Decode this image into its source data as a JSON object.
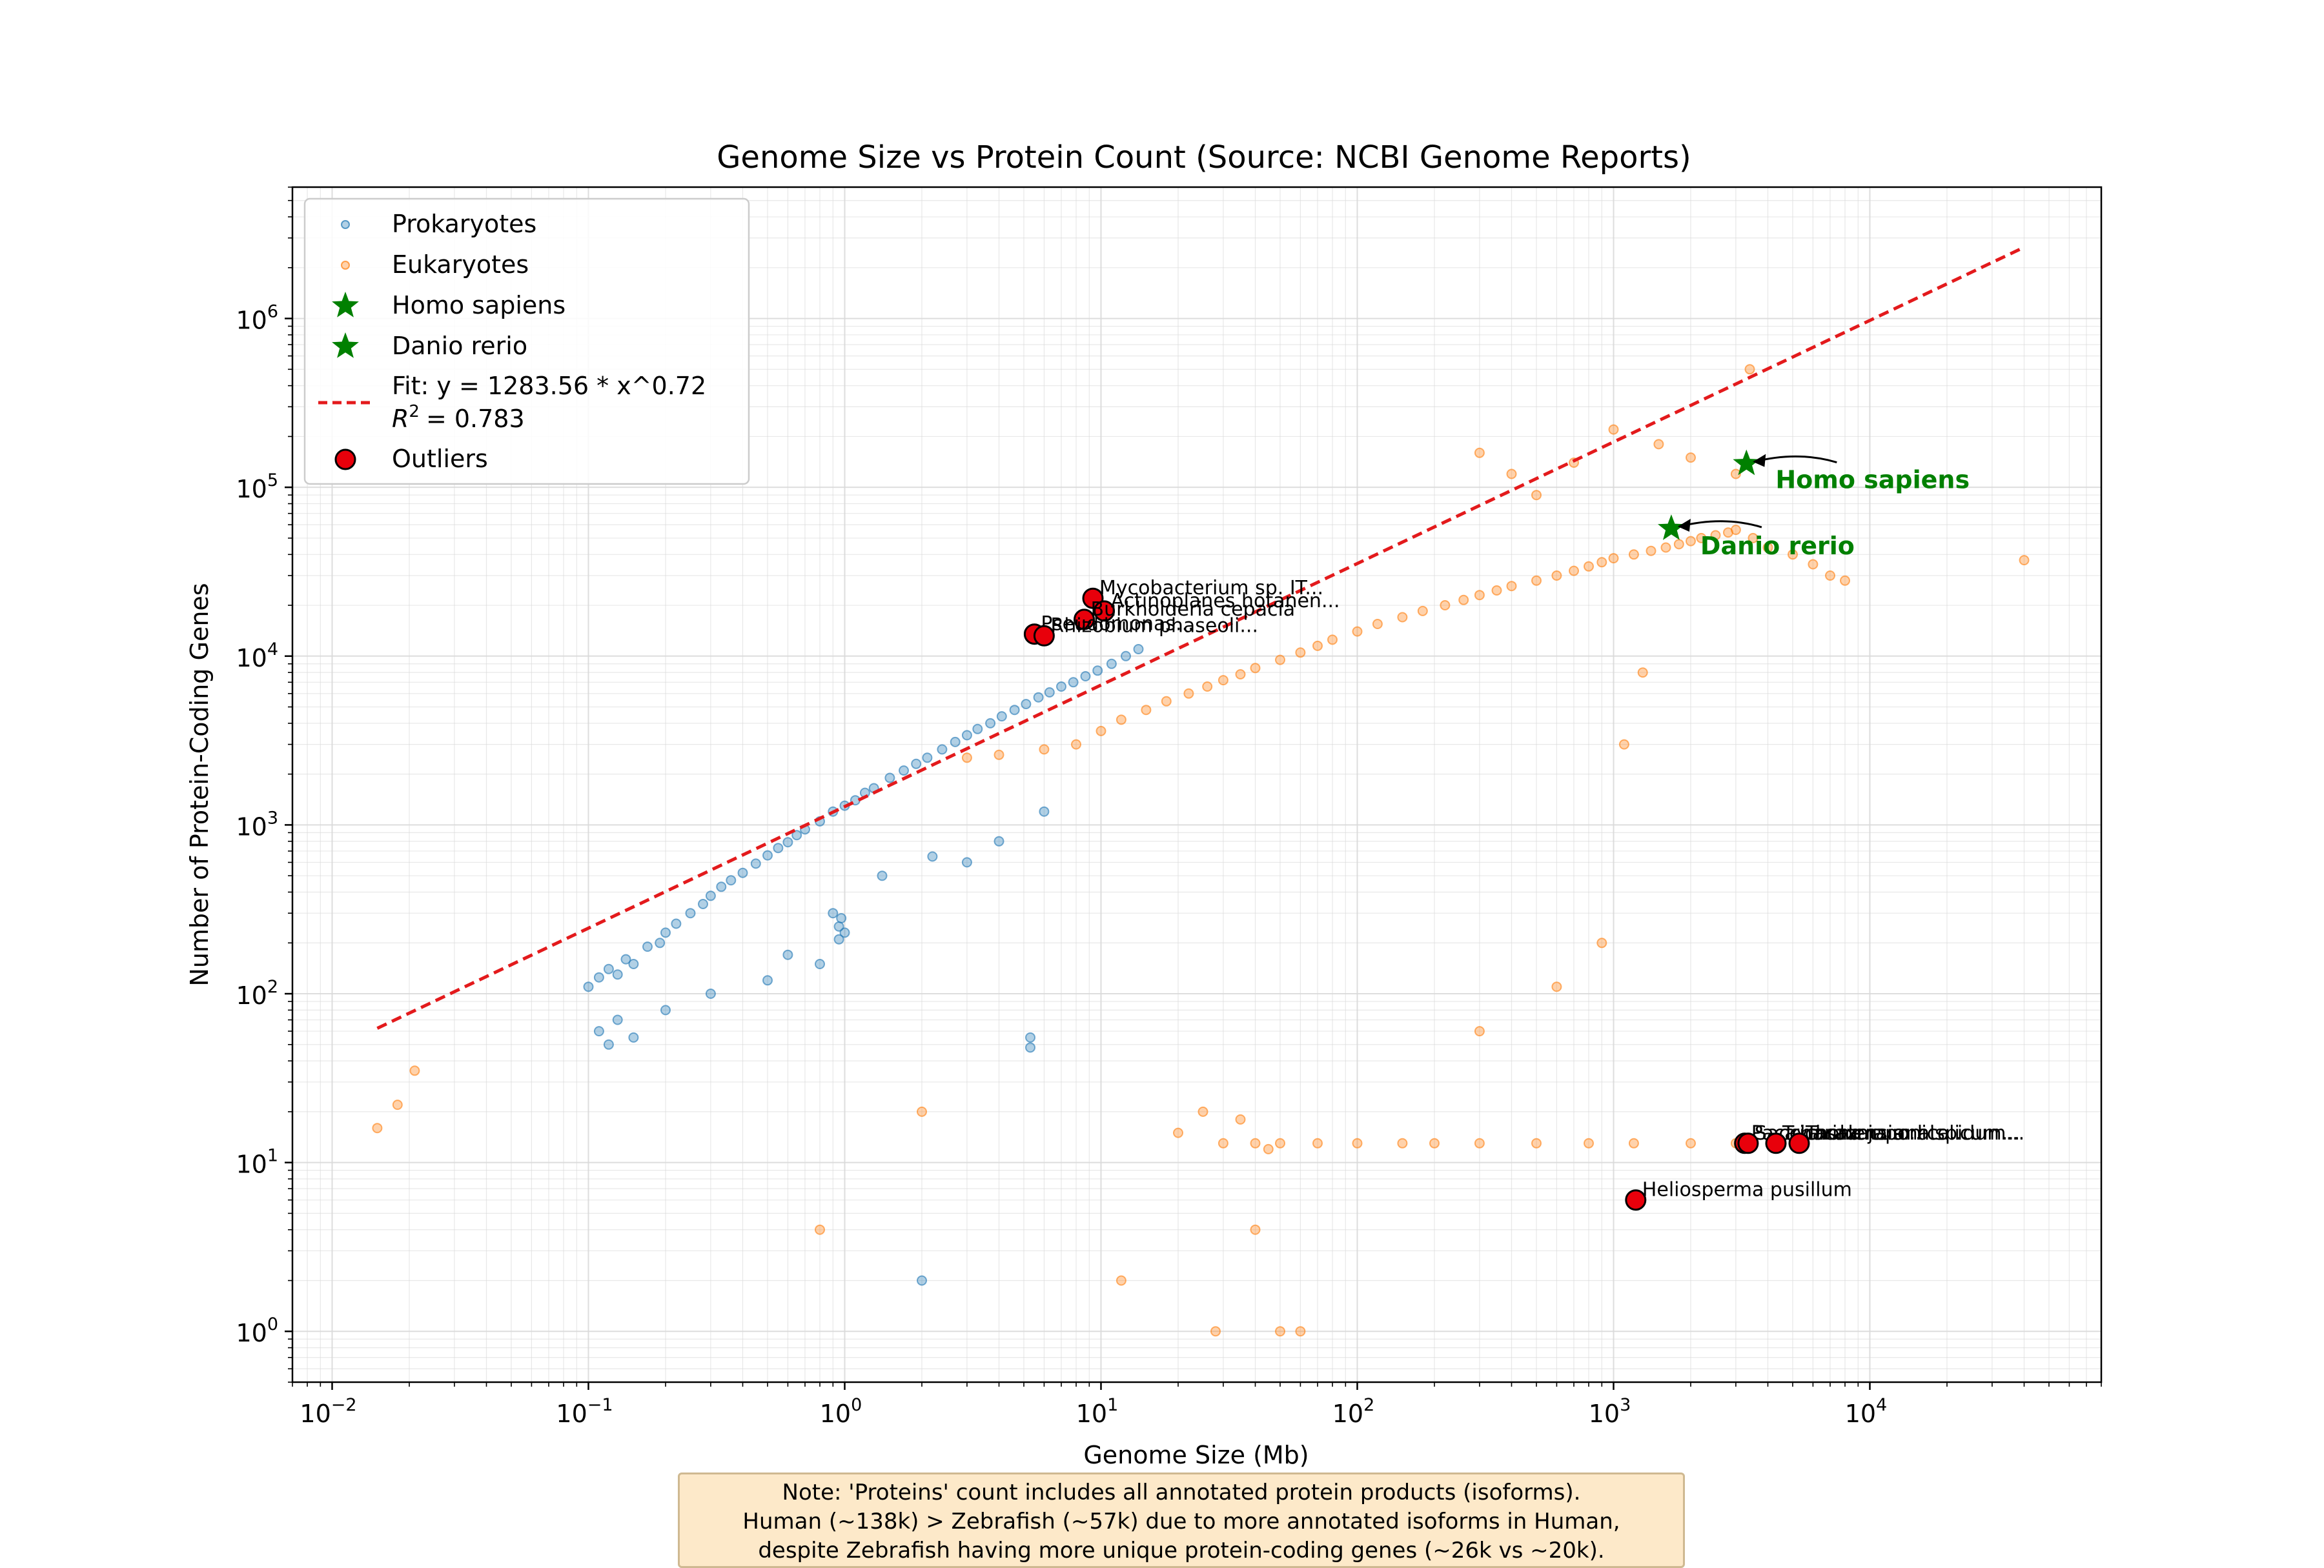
{
  "chart_data": {
    "type": "scatter",
    "title": "Genome Size vs Protein Count (Source: NCBI Genome Reports)",
    "xlabel": "Genome Size (Mb)",
    "ylabel": "Number of Protein-Coding Genes",
    "x_scale": "log",
    "y_scale": "log",
    "xlim": [
      0.007,
      80000
    ],
    "ylim": [
      0.5,
      6000000
    ],
    "x_ticks": [
      0.01,
      0.1,
      1,
      10,
      100,
      1000,
      10000
    ],
    "x_tick_labels": [
      [
        "10",
        "−2"
      ],
      [
        "10",
        "−1"
      ],
      [
        "10",
        "0"
      ],
      [
        "10",
        "1"
      ],
      [
        "10",
        "2"
      ],
      [
        "10",
        "3"
      ],
      [
        "10",
        "4"
      ]
    ],
    "y_ticks": [
      1,
      10,
      100,
      1000,
      10000,
      100000,
      1000000
    ],
    "y_tick_labels": [
      [
        "10",
        "0"
      ],
      [
        "10",
        "1"
      ],
      [
        "10",
        "2"
      ],
      [
        "10",
        "3"
      ],
      [
        "10",
        "4"
      ],
      [
        "10",
        "5"
      ],
      [
        "10",
        "6"
      ]
    ],
    "grid": true,
    "legend_position": "top-left",
    "colors": {
      "prokaryotes": "#1f77b4",
      "eukaryotes": "#ff7f0e",
      "highlight": "#008000",
      "fit": "#e31a1c",
      "outlier": "#e8000b"
    },
    "series": [
      {
        "name": "Prokaryotes",
        "kind": "points",
        "note": "dense cloud of ~thousands of genomes roughly 0.1–15 Mb, ~40–20000 genes",
        "x": [
          0.1,
          0.11,
          0.12,
          0.13,
          0.14,
          0.15,
          0.17,
          0.19,
          0.2,
          0.22,
          0.25,
          0.28,
          0.3,
          0.33,
          0.36,
          0.4,
          0.45,
          0.5,
          0.55,
          0.6,
          0.65,
          0.7,
          0.8,
          0.9,
          1.0,
          1.1,
          1.2,
          1.3,
          1.5,
          1.7,
          1.9,
          2.1,
          2.4,
          2.7,
          3.0,
          3.3,
          3.7,
          4.1,
          4.6,
          5.1,
          5.7,
          6.3,
          7.0,
          7.8,
          8.7,
          9.7,
          11,
          12.5,
          14,
          0.95,
          0.95,
          0.97,
          1.0,
          5.3,
          5.3,
          0.11,
          0.12,
          0.13,
          0.15,
          0.2,
          0.3,
          0.5,
          0.8,
          2.0,
          3.0,
          4.0,
          6.0,
          0.6,
          0.9,
          1.4,
          2.2
        ],
        "y": [
          110,
          125,
          140,
          130,
          160,
          150,
          190,
          200,
          230,
          260,
          300,
          340,
          380,
          430,
          470,
          520,
          590,
          660,
          730,
          790,
          870,
          940,
          1050,
          1200,
          1300,
          1400,
          1550,
          1650,
          1900,
          2100,
          2300,
          2500,
          2800,
          3100,
          3400,
          3700,
          4000,
          4400,
          4800,
          5200,
          5700,
          6100,
          6600,
          7000,
          7600,
          8200,
          9000,
          10000,
          11000,
          250,
          210,
          280,
          230,
          48,
          55,
          60,
          50,
          70,
          55,
          80,
          100,
          120,
          150,
          2,
          600,
          800,
          1200,
          170,
          300,
          500,
          650
        ]
      },
      {
        "name": "Eukaryotes",
        "kind": "points",
        "note": "broad cloud of genomes roughly 3–40000 Mb, mostly 1000–100000 genes, plus a flat band at ~13",
        "x": [
          0.015,
          0.018,
          0.021,
          3,
          4,
          6,
          8,
          10,
          12,
          15,
          18,
          22,
          26,
          30,
          35,
          40,
          50,
          60,
          70,
          80,
          100,
          120,
          150,
          180,
          220,
          260,
          300,
          350,
          400,
          500,
          600,
          700,
          800,
          900,
          1000,
          1200,
          1400,
          1600,
          1800,
          2000,
          2200,
          2500,
          2800,
          3000,
          3500,
          4000,
          5000,
          6000,
          7000,
          8000,
          40000,
          30,
          40,
          50,
          70,
          100,
          150,
          200,
          300,
          500,
          800,
          1200,
          2000,
          3000,
          300,
          400,
          500,
          700,
          1000,
          1500,
          2000,
          3000,
          3400,
          20,
          25,
          35,
          45,
          60,
          28,
          40,
          50,
          12,
          2.0,
          0.8,
          300,
          600,
          900,
          1100,
          1300
        ],
        "y": [
          16,
          22,
          35,
          2500,
          2600,
          2800,
          3000,
          3600,
          4200,
          4800,
          5400,
          6000,
          6600,
          7200,
          7800,
          8500,
          9500,
          10500,
          11500,
          12500,
          14000,
          15500,
          17000,
          18500,
          20000,
          21500,
          23000,
          24500,
          26000,
          28000,
          30000,
          32000,
          34000,
          36000,
          38000,
          40000,
          42000,
          44000,
          46000,
          48000,
          50000,
          52000,
          54000,
          56000,
          50000,
          44000,
          40000,
          35000,
          30000,
          28000,
          37000,
          13,
          13,
          13,
          13,
          13,
          13,
          13,
          13,
          13,
          13,
          13,
          13,
          13,
          160000,
          120000,
          90000,
          140000,
          220000,
          180000,
          150000,
          120000,
          500000,
          15,
          20,
          18,
          12,
          1,
          1,
          4,
          1,
          2,
          20,
          4,
          60,
          110,
          200,
          3000,
          8000
        ]
      },
      {
        "name": "Homo sapiens",
        "kind": "highlight",
        "x": [
          3300
        ],
        "y": [
          138000
        ]
      },
      {
        "name": "Danio rerio",
        "kind": "highlight",
        "x": [
          1680
        ],
        "y": [
          57000
        ]
      },
      {
        "name": "Outliers",
        "kind": "outliers",
        "x": [
          9.3,
          10.3,
          8.6,
          5.5,
          6.0,
          1220,
          3250,
          3350,
          4300,
          5300
        ],
        "y": [
          22000,
          18500,
          16500,
          13500,
          13200,
          6,
          13,
          13,
          13,
          13
        ],
        "labels": [
          "Mycobacterium sp. IT...",
          "Actinoplanes hotanen...",
          "Burkholderia cepacia",
          "Pseudomonas...",
          "Rhizobium phaseoli...",
          "Heliosperma pusillum",
          "Pacaya salensis...",
          "Saccharina japonica...",
          "Tricholoma anatolicum...",
          "Taraxacum hispidum..."
        ]
      }
    ],
    "fit": {
      "name": "Fit: y = 1283.56 * x^0.72",
      "r2_label": "= 0.783",
      "a": 1283.56,
      "b": 0.72,
      "x_range": [
        0.015,
        40000
      ]
    },
    "annotations": [
      {
        "text": "Homo sapiens",
        "point_x": 3300,
        "point_y": 138000
      },
      {
        "text": "Danio rerio",
        "point_x": 1680,
        "point_y": 57000
      }
    ]
  },
  "legend": {
    "items": [
      "Prokaryotes",
      "Eukaryotes",
      "Homo sapiens",
      "Danio rerio",
      "Fit: y = 1283.56 * x^0.72",
      "= 0.783",
      "Outliers"
    ]
  },
  "note": {
    "lines": [
      "Note: 'Proteins' count includes all annotated protein products (isoforms).",
      "Human (~138k) > Zebrafish (~57k) due to more annotated isoforms in Human,",
      "despite Zebrafish having more unique protein-coding genes (~26k vs ~20k)."
    ]
  }
}
